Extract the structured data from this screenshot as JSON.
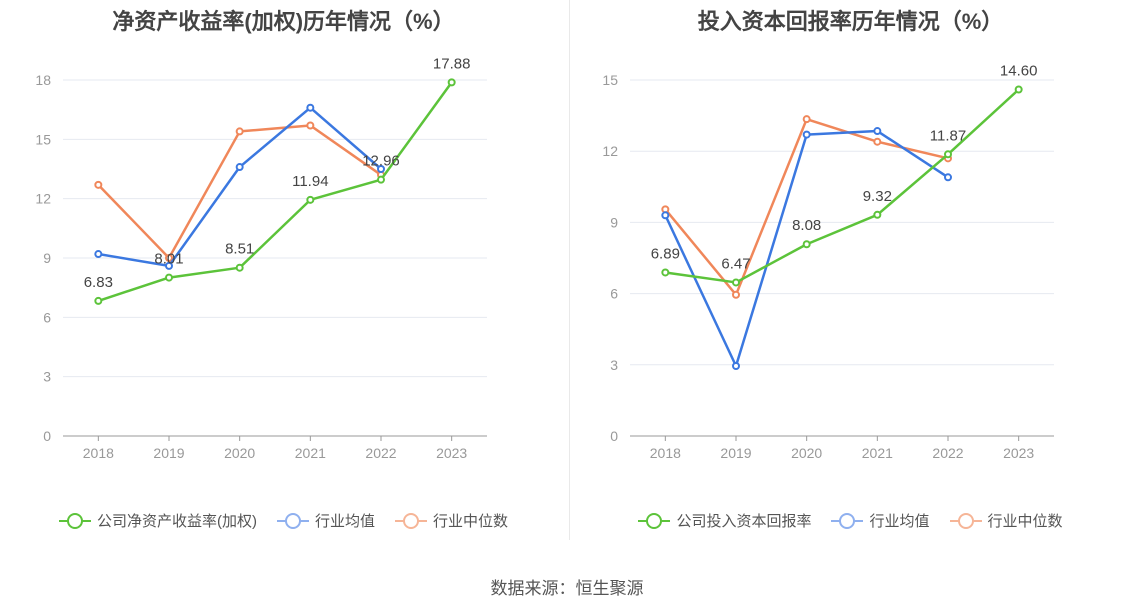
{
  "source": "数据来源：恒生聚源",
  "colors": {
    "company": "#5cc33a",
    "avg": "#3b78e0",
    "median": "#f0875a"
  },
  "chart_data": [
    {
      "type": "line",
      "title": "净资产收益率(加权)历年情况（%）",
      "categories": [
        "2018",
        "2019",
        "2020",
        "2021",
        "2022",
        "2023"
      ],
      "ylim": [
        0,
        18
      ],
      "yticks": [
        0,
        3,
        6,
        9,
        12,
        15,
        18
      ],
      "grid": true,
      "legend_position": "bottom",
      "series": [
        {
          "name": "公司净资产收益率(加权)",
          "key": "company",
          "values": [
            6.83,
            8.01,
            8.51,
            11.94,
            12.96,
            17.88
          ],
          "labels": [
            "6.83",
            "8.01",
            "8.51",
            "11.94",
            "12.96",
            "17.88"
          ]
        },
        {
          "name": "行业均值",
          "key": "avg",
          "values": [
            9.2,
            8.6,
            13.6,
            16.6,
            13.5,
            null
          ]
        },
        {
          "name": "行业中位数",
          "key": "median",
          "values": [
            12.7,
            9.0,
            15.4,
            15.7,
            13.2,
            null
          ]
        }
      ]
    },
    {
      "type": "line",
      "title": "投入资本回报率历年情况（%）",
      "categories": [
        "2018",
        "2019",
        "2020",
        "2021",
        "2022",
        "2023"
      ],
      "ylim": [
        0,
        15
      ],
      "yticks": [
        0,
        3,
        6,
        9,
        12,
        15
      ],
      "grid": true,
      "legend_position": "bottom",
      "series": [
        {
          "name": "公司投入资本回报率",
          "key": "company",
          "values": [
            6.89,
            6.47,
            8.08,
            9.32,
            11.87,
            14.6
          ],
          "labels": [
            "6.89",
            "6.47",
            "8.08",
            "9.32",
            "11.87",
            "14.60"
          ]
        },
        {
          "name": "行业均值",
          "key": "avg",
          "values": [
            9.3,
            2.95,
            12.7,
            12.85,
            10.9,
            null
          ]
        },
        {
          "name": "行业中位数",
          "key": "median",
          "values": [
            9.55,
            5.95,
            13.35,
            12.4,
            11.7,
            null
          ]
        }
      ]
    }
  ]
}
